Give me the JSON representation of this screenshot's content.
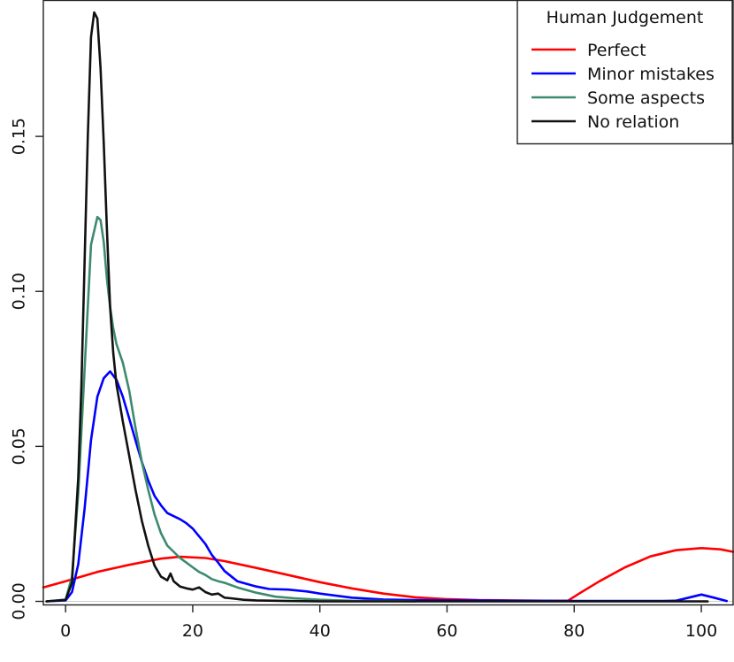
{
  "chart_data": {
    "type": "line",
    "title": "",
    "xlabel": "",
    "ylabel": "",
    "xlim": [
      -3.5,
      105
    ],
    "ylim": [
      -0.001,
      0.194
    ],
    "xticks": [
      0,
      20,
      40,
      60,
      80,
      100
    ],
    "yticks": [
      0.0,
      0.05,
      0.1,
      0.15
    ],
    "xtick_labels": [
      "0",
      "20",
      "40",
      "60",
      "80",
      "100"
    ],
    "ytick_labels": [
      "0.00",
      "0.05",
      "0.10",
      "0.15"
    ],
    "grid": false,
    "baseline": 0,
    "legend": {
      "title": "Human Judgement",
      "position": "top-right"
    },
    "series": [
      {
        "name": "Perfect",
        "color": "#ff0000",
        "x": [
          -3.5,
          0,
          5,
          10,
          15,
          18,
          22,
          25,
          30,
          35,
          40,
          45,
          50,
          55,
          60,
          65,
          70,
          75,
          79,
          81,
          84,
          88,
          92,
          96,
          100,
          103,
          105
        ],
        "y": [
          0.0045,
          0.0065,
          0.0095,
          0.0118,
          0.0138,
          0.0144,
          0.014,
          0.013,
          0.0108,
          0.0085,
          0.0062,
          0.0042,
          0.0025,
          0.0013,
          0.0007,
          0.0004,
          0.0003,
          0.0002,
          0.0002,
          0.0028,
          0.0065,
          0.011,
          0.0145,
          0.0165,
          0.0172,
          0.0168,
          0.016
        ]
      },
      {
        "name": "Minor mistakes",
        "color": "#0000ff",
        "x": [
          -3,
          0,
          1,
          2,
          3,
          4,
          5,
          6,
          7,
          8,
          9,
          10,
          11,
          12,
          13,
          14,
          15,
          16,
          17,
          18,
          19,
          20,
          21,
          22,
          23,
          24,
          25,
          27,
          30,
          32,
          35,
          38,
          40,
          45,
          50,
          55,
          60,
          65,
          70,
          75,
          80,
          85,
          90,
          94,
          96,
          98,
          100,
          102,
          104
        ],
        "y": [
          0,
          0.0003,
          0.003,
          0.012,
          0.03,
          0.052,
          0.066,
          0.072,
          0.0742,
          0.0715,
          0.066,
          0.059,
          0.052,
          0.045,
          0.039,
          0.034,
          0.031,
          0.0285,
          0.0275,
          0.0265,
          0.0252,
          0.0235,
          0.021,
          0.0185,
          0.015,
          0.0125,
          0.0098,
          0.0065,
          0.0048,
          0.004,
          0.0038,
          0.0032,
          0.0025,
          0.0012,
          0.0006,
          0.0004,
          0.0003,
          0.0003,
          0.0002,
          0.0002,
          0.0001,
          0.0001,
          0.0001,
          0.0001,
          0.0002,
          0.0012,
          0.0022,
          0.0012,
          0.0001
        ]
      },
      {
        "name": "Some aspects",
        "color": "#3d8b6e",
        "x": [
          -3,
          0,
          1,
          2,
          3,
          4,
          5,
          5.5,
          6,
          6.5,
          7,
          7.5,
          8,
          9,
          10,
          11,
          12,
          13,
          14,
          15,
          16,
          17,
          18,
          19,
          20,
          21,
          22,
          23,
          24,
          25,
          27,
          30,
          33,
          36,
          40,
          45,
          50,
          55
        ],
        "y": [
          0,
          0.0005,
          0.008,
          0.035,
          0.075,
          0.115,
          0.124,
          0.123,
          0.116,
          0.104,
          0.095,
          0.088,
          0.083,
          0.077,
          0.068,
          0.056,
          0.045,
          0.036,
          0.028,
          0.022,
          0.018,
          0.016,
          0.014,
          0.0125,
          0.011,
          0.0095,
          0.0085,
          0.0072,
          0.0065,
          0.006,
          0.0045,
          0.0028,
          0.0015,
          0.001,
          0.0005,
          0.0002,
          0.0001,
          0
        ]
      },
      {
        "name": "No relation",
        "color": "#111111",
        "x": [
          -3,
          0,
          1,
          2,
          2.5,
          3,
          3.5,
          4,
          4.5,
          5,
          5.5,
          6,
          6.5,
          7,
          7.5,
          8,
          8.5,
          9,
          10,
          11,
          12,
          13,
          14,
          15,
          16,
          16.5,
          17,
          18,
          19,
          20,
          21,
          22,
          23,
          24,
          25,
          26,
          28,
          30,
          35,
          40,
          50,
          60,
          70,
          80,
          90,
          101
        ],
        "y": [
          0,
          0.0005,
          0.006,
          0.04,
          0.07,
          0.11,
          0.15,
          0.182,
          0.19,
          0.188,
          0.172,
          0.148,
          0.12,
          0.095,
          0.08,
          0.07,
          0.064,
          0.058,
          0.047,
          0.036,
          0.026,
          0.018,
          0.0115,
          0.008,
          0.0068,
          0.009,
          0.0065,
          0.0048,
          0.0042,
          0.0038,
          0.0045,
          0.003,
          0.0022,
          0.0025,
          0.0012,
          0.001,
          0.0005,
          0.0003,
          0.0001,
          0,
          0,
          0,
          0,
          0,
          0,
          0
        ]
      }
    ]
  }
}
